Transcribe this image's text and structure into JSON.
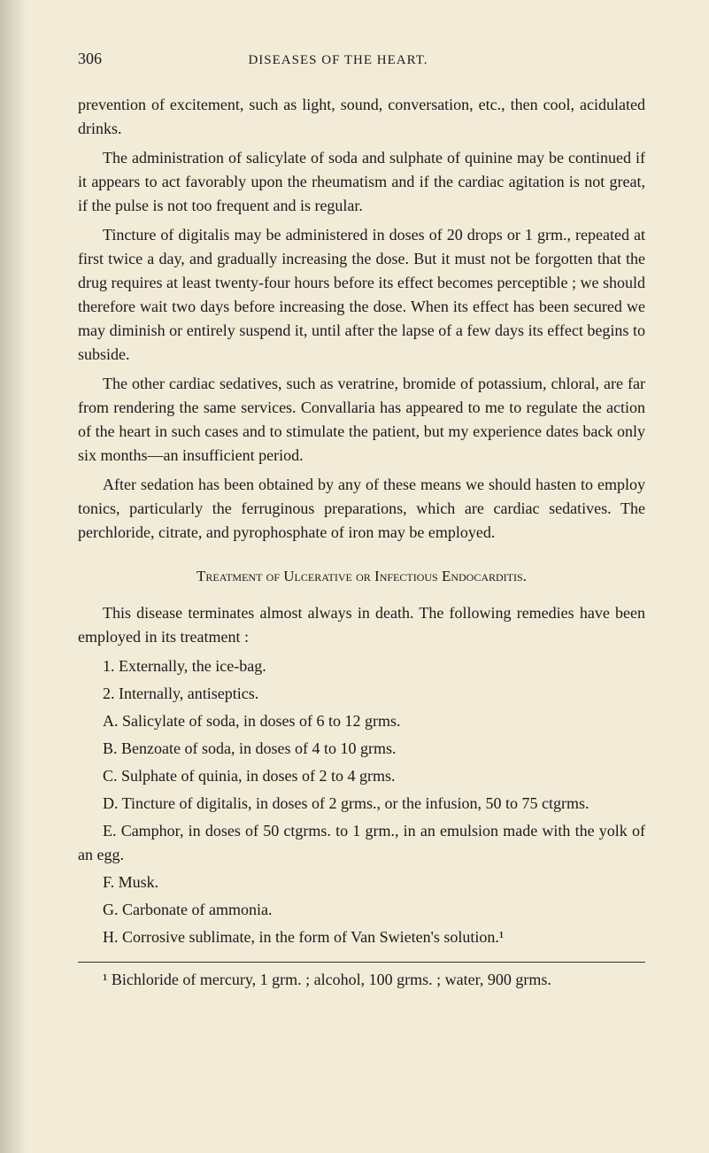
{
  "page": {
    "number": "306",
    "running_title": "DISEASES OF THE HEART.",
    "background_color": "#f2ebd8",
    "text_color": "#1a1a1a",
    "font_family": "Georgia, serif",
    "body_fontsize": 18,
    "line_height": 1.5
  },
  "paragraphs": {
    "p1": "prevention of excitement, such as light, sound, conversation, etc., then cool, acidulated drinks.",
    "p2": "The administration of salicylate of soda and sulphate of quinine may be continued if it appears to act favorably upon the rheumatism and if the cardiac agitation is not great, if the pulse is not too frequent and is regular.",
    "p3": "Tincture of digitalis may be administered in doses of 20 drops or 1 grm., repeated at first twice a day, and gradually increasing the dose. But it must not be forgotten that the drug requires at least twenty-four hours before its effect becomes perceptible ; we should therefore wait two days before increasing the dose. When its effect has been secured we may diminish or entirely suspend it, until after the lapse of a few days its effect begins to subside.",
    "p4": "The other cardiac sedatives, such as veratrine, bromide of potassium, chloral, are far from rendering the same services. Convallaria has ap­peared to me to regulate the action of the heart in such cases and to stimulate the patient, but my experience dates back only six months—an insufficient period.",
    "p5": "After sedation has been obtained by any of these means we should hasten to employ tonics, particularly the ferruginous preparations, which are cardiac sedatives. The perchloride, citrate, and pyrophosphate of iron may be employed."
  },
  "section_title": "Treatment of Ulcerative or Infectious Endocarditis.",
  "after_title": {
    "intro": "This disease terminates almost always in death. The following reme­dies have been employed in its treatment :",
    "items": {
      "i1": "1. Externally, the ice-bag.",
      "i2": "2. Internally, antiseptics.",
      "iA": "A. Salicylate of soda, in doses of 6 to 12 grms.",
      "iB": "B. Benzoate of soda, in doses of 4 to 10 grms.",
      "iC": "C. Sulphate of quinia, in doses of 2 to 4 grms.",
      "iD": "D. Tincture of digitalis, in doses of 2 grms., or the infusion, 50 to 75 ctgrms.",
      "iE": "E. Camphor, in doses of 50 ctgrms. to 1 grm., in an emulsion made with the yolk of an egg.",
      "iF": "F. Musk.",
      "iG": "G. Carbonate of ammonia.",
      "iH": "H. Corrosive sublimate, in the form of Van Swieten's solution.¹"
    }
  },
  "footnote": "¹ Bichloride of mercury, 1 grm. ; alcohol, 100 grms. ; water, 900 grms."
}
